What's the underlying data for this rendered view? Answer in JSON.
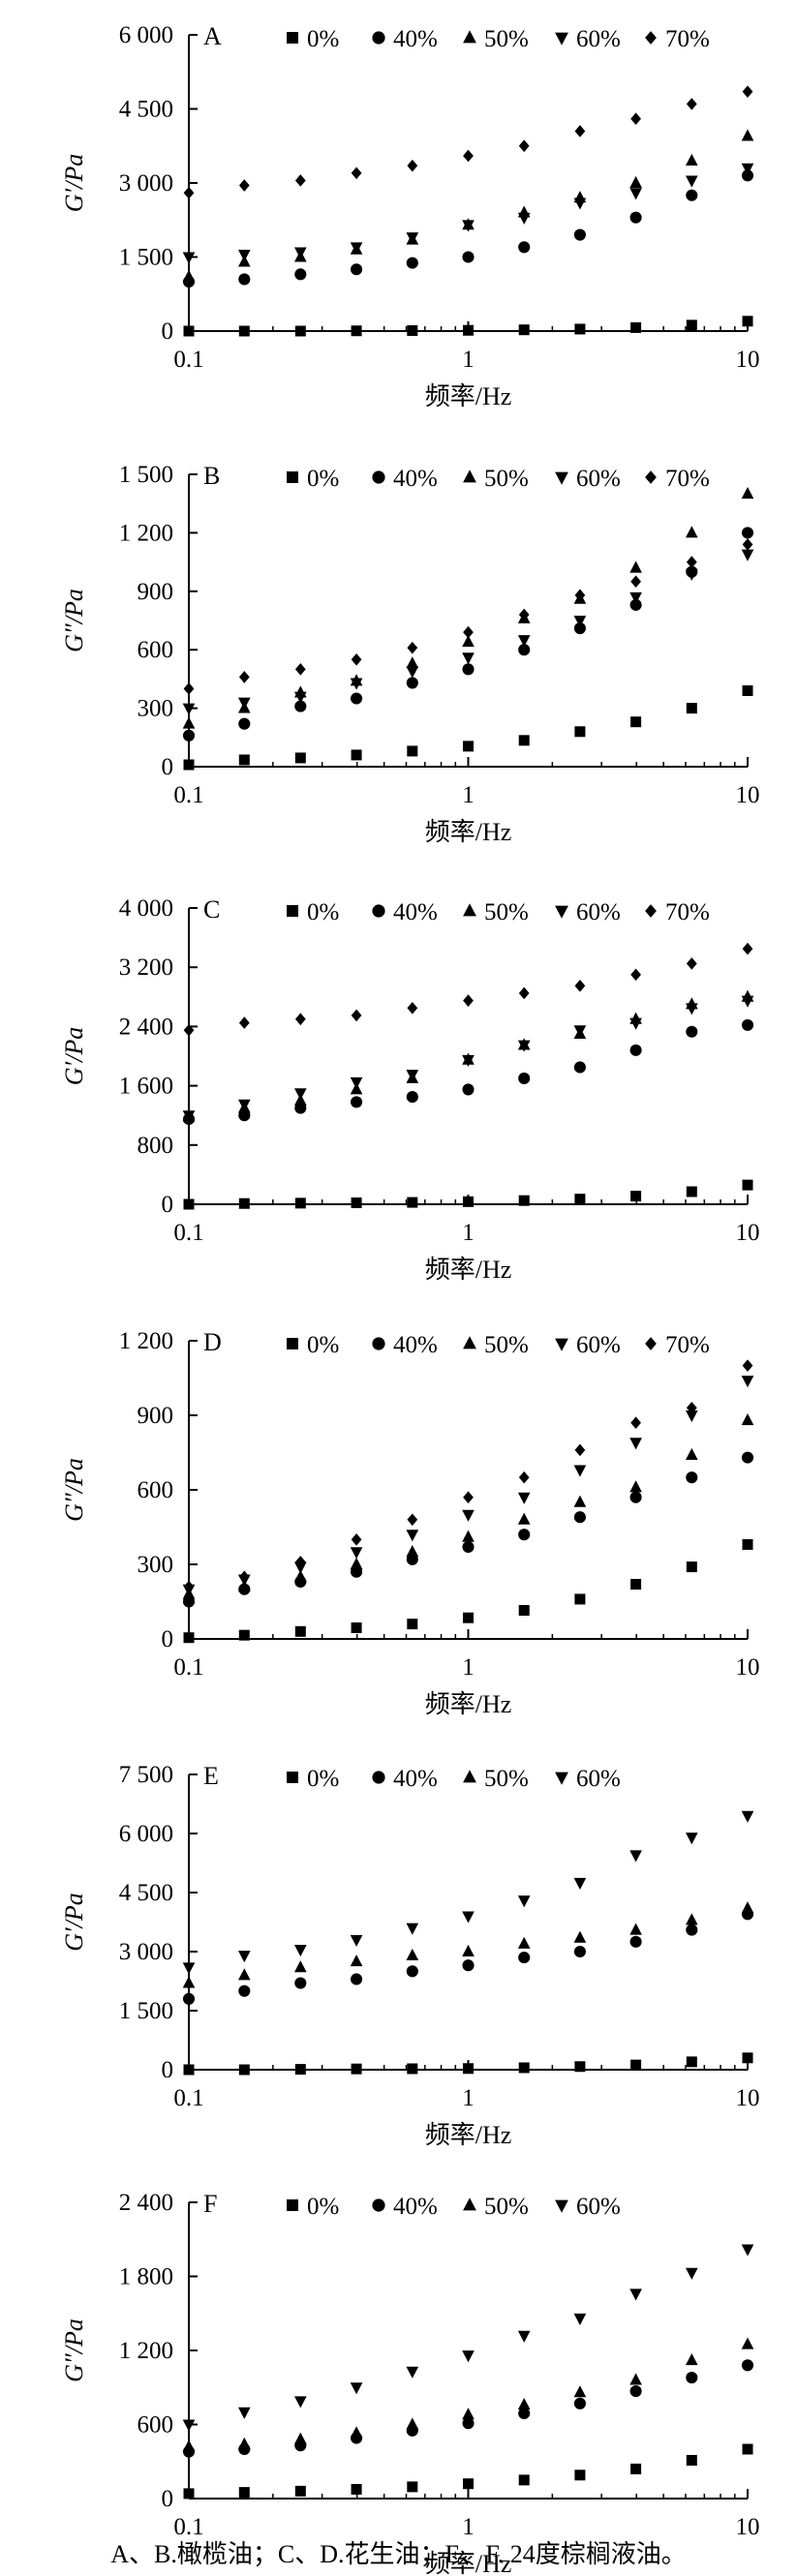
{
  "caption": "A、B.橄榄油；C、D.花生油；E、F. 24度棕榈液油。",
  "chart_data": [
    {
      "type": "scatter",
      "panel": "A",
      "xscale": "log",
      "xlim": [
        0.1,
        10
      ],
      "xticks": [
        0.1,
        1,
        10
      ],
      "xtick_labels": [
        "0.1",
        "1",
        "10"
      ],
      "xlabel": "频率/Hz",
      "ylabel": "G′/Pa",
      "ylim": [
        0,
        6000
      ],
      "yticks": [
        0,
        1500,
        3000,
        4500,
        6000
      ],
      "ytick_labels": [
        "0",
        "1 500",
        "3 000",
        "4 500",
        "6 000"
      ],
      "x": [
        0.1,
        0.158,
        0.251,
        0.398,
        0.631,
        1.0,
        1.585,
        2.512,
        3.981,
        6.31,
        10.0
      ],
      "series": [
        {
          "name": "0%",
          "marker": "square",
          "values": [
            0,
            0,
            0,
            5,
            10,
            15,
            25,
            40,
            70,
            120,
            200
          ]
        },
        {
          "name": "40%",
          "marker": "circle",
          "values": [
            1000,
            1050,
            1150,
            1250,
            1380,
            1500,
            1700,
            1950,
            2300,
            2750,
            3150
          ]
        },
        {
          "name": "50%",
          "marker": "triangle-up",
          "values": [
            1100,
            1400,
            1500,
            1650,
            1850,
            2150,
            2400,
            2700,
            3000,
            3450,
            3950
          ]
        },
        {
          "name": "60%",
          "marker": "triangle-down",
          "values": [
            1500,
            1550,
            1600,
            1700,
            1900,
            2150,
            2300,
            2600,
            2800,
            3050,
            3300
          ]
        },
        {
          "name": "70%",
          "marker": "diamond",
          "values": [
            2800,
            2950,
            3050,
            3200,
            3350,
            3550,
            3750,
            4050,
            4300,
            4600,
            4850
          ]
        }
      ]
    },
    {
      "type": "scatter",
      "panel": "B",
      "xscale": "log",
      "xlim": [
        0.1,
        10
      ],
      "xticks": [
        0.1,
        1,
        10
      ],
      "xtick_labels": [
        "0.1",
        "1",
        "10"
      ],
      "xlabel": "频率/Hz",
      "ylabel": "G″/Pa",
      "ylim": [
        0,
        1500
      ],
      "yticks": [
        0,
        300,
        600,
        900,
        1200,
        1500
      ],
      "ytick_labels": [
        "0",
        "300",
        "600",
        "900",
        "1 200",
        "1 500"
      ],
      "x": [
        0.1,
        0.158,
        0.251,
        0.398,
        0.631,
        1.0,
        1.585,
        2.512,
        3.981,
        6.31,
        10.0
      ],
      "series": [
        {
          "name": "0%",
          "marker": "square",
          "values": [
            10,
            35,
            45,
            60,
            80,
            105,
            135,
            180,
            230,
            300,
            390
          ]
        },
        {
          "name": "40%",
          "marker": "circle",
          "values": [
            160,
            220,
            310,
            350,
            430,
            500,
            600,
            710,
            830,
            1000,
            1200
          ]
        },
        {
          "name": "50%",
          "marker": "triangle-up",
          "values": [
            220,
            300,
            380,
            440,
            530,
            640,
            760,
            860,
            1020,
            1200,
            1400
          ]
        },
        {
          "name": "60%",
          "marker": "triangle-down",
          "values": [
            300,
            330,
            360,
            430,
            490,
            560,
            650,
            750,
            870,
            990,
            1090
          ]
        },
        {
          "name": "70%",
          "marker": "diamond",
          "values": [
            400,
            460,
            500,
            550,
            610,
            690,
            780,
            880,
            950,
            1050,
            1140
          ]
        }
      ]
    },
    {
      "type": "scatter",
      "panel": "C",
      "xscale": "log",
      "xlim": [
        0.1,
        10
      ],
      "xticks": [
        0.1,
        1,
        10
      ],
      "xtick_labels": [
        "0.1",
        "1",
        "10"
      ],
      "xlabel": "频率/Hz",
      "ylabel": "G′/Pa",
      "ylim": [
        0,
        4000
      ],
      "yticks": [
        0,
        800,
        1600,
        2400,
        3200,
        4000
      ],
      "ytick_labels": [
        "0",
        "800",
        "1 600",
        "2 400",
        "3 200",
        "4 000"
      ],
      "x": [
        0.1,
        0.158,
        0.251,
        0.398,
        0.631,
        1.0,
        1.585,
        2.512,
        3.981,
        6.31,
        10.0
      ],
      "series": [
        {
          "name": "0%",
          "marker": "square",
          "values": [
            0,
            10,
            15,
            20,
            25,
            35,
            50,
            70,
            110,
            170,
            260
          ]
        },
        {
          "name": "40%",
          "marker": "circle",
          "values": [
            1150,
            1200,
            1300,
            1380,
            1450,
            1550,
            1700,
            1850,
            2080,
            2330,
            2420
          ]
        },
        {
          "name": "50%",
          "marker": "triangle-up",
          "values": [
            1180,
            1300,
            1400,
            1550,
            1700,
            1950,
            2150,
            2300,
            2500,
            2700,
            2800
          ]
        },
        {
          "name": "60%",
          "marker": "triangle-down",
          "values": [
            1200,
            1350,
            1500,
            1650,
            1750,
            1950,
            2150,
            2350,
            2450,
            2650,
            2750
          ]
        },
        {
          "name": "70%",
          "marker": "diamond",
          "values": [
            2350,
            2450,
            2500,
            2550,
            2650,
            2750,
            2850,
            2950,
            3100,
            3250,
            3450
          ]
        }
      ]
    },
    {
      "type": "scatter",
      "panel": "D",
      "xscale": "log",
      "xlim": [
        0.1,
        10
      ],
      "xticks": [
        0.1,
        1,
        10
      ],
      "xtick_labels": [
        "0.1",
        "1",
        "10"
      ],
      "xlabel": "频率/Hz",
      "ylabel": "G″/Pa",
      "ylim": [
        0,
        1200
      ],
      "yticks": [
        0,
        300,
        600,
        900,
        1200
      ],
      "ytick_labels": [
        "0",
        "300",
        "600",
        "900",
        "1 200"
      ],
      "x": [
        0.1,
        0.158,
        0.251,
        0.398,
        0.631,
        1.0,
        1.585,
        2.512,
        3.981,
        6.31,
        10.0
      ],
      "series": [
        {
          "name": "0%",
          "marker": "square",
          "values": [
            5,
            15,
            30,
            45,
            60,
            85,
            115,
            160,
            220,
            290,
            380
          ]
        },
        {
          "name": "40%",
          "marker": "circle",
          "values": [
            150,
            200,
            230,
            270,
            320,
            370,
            420,
            490,
            570,
            650,
            730
          ]
        },
        {
          "name": "50%",
          "marker": "triangle-up",
          "values": [
            180,
            210,
            250,
            300,
            350,
            410,
            480,
            550,
            610,
            740,
            880
          ]
        },
        {
          "name": "60%",
          "marker": "triangle-down",
          "values": [
            200,
            240,
            290,
            350,
            420,
            500,
            570,
            680,
            790,
            900,
            1040
          ]
        },
        {
          "name": "70%",
          "marker": "diamond",
          "values": [
            210,
            250,
            310,
            400,
            480,
            570,
            650,
            760,
            870,
            930,
            1100
          ]
        }
      ]
    },
    {
      "type": "scatter",
      "panel": "E",
      "xscale": "log",
      "xlim": [
        0.1,
        10
      ],
      "xticks": [
        0.1,
        1,
        10
      ],
      "xtick_labels": [
        "0.1",
        "1",
        "10"
      ],
      "xlabel": "频率/Hz",
      "ylabel": "G′/Pa",
      "ylim": [
        0,
        7500
      ],
      "yticks": [
        0,
        1500,
        3000,
        4500,
        6000,
        7500
      ],
      "ytick_labels": [
        "0",
        "1 500",
        "3 000",
        "4 500",
        "6 000",
        "7 500"
      ],
      "x": [
        0.1,
        0.158,
        0.251,
        0.398,
        0.631,
        1.0,
        1.585,
        2.512,
        3.981,
        6.31,
        10.0
      ],
      "series": [
        {
          "name": "0%",
          "marker": "square",
          "values": [
            0,
            0,
            10,
            20,
            25,
            30,
            50,
            80,
            120,
            200,
            300
          ]
        },
        {
          "name": "40%",
          "marker": "circle",
          "values": [
            1800,
            2000,
            2200,
            2300,
            2500,
            2650,
            2850,
            3000,
            3250,
            3550,
            3950
          ]
        },
        {
          "name": "50%",
          "marker": "triangle-up",
          "values": [
            2200,
            2400,
            2600,
            2750,
            2900,
            3000,
            3200,
            3350,
            3550,
            3800,
            4100
          ]
        },
        {
          "name": "60%",
          "marker": "triangle-down",
          "values": [
            2600,
            2900,
            3050,
            3300,
            3600,
            3900,
            4300,
            4750,
            5450,
            5900,
            6450
          ]
        }
      ]
    },
    {
      "type": "scatter",
      "panel": "F",
      "xscale": "log",
      "xlim": [
        0.1,
        10
      ],
      "xticks": [
        0.1,
        1,
        10
      ],
      "xtick_labels": [
        "0.1",
        "1",
        "10"
      ],
      "xlabel": "频率/Hz",
      "ylabel": "G″/Pa",
      "ylim": [
        0,
        2400
      ],
      "yticks": [
        0,
        600,
        1200,
        1800,
        2400
      ],
      "ytick_labels": [
        "0",
        "600",
        "1 200",
        "1 800",
        "2 400"
      ],
      "x": [
        0.1,
        0.158,
        0.251,
        0.398,
        0.631,
        1.0,
        1.585,
        2.512,
        3.981,
        6.31,
        10.0
      ],
      "series": [
        {
          "name": "0%",
          "marker": "square",
          "values": [
            40,
            50,
            60,
            75,
            95,
            120,
            150,
            190,
            240,
            310,
            400
          ]
        },
        {
          "name": "40%",
          "marker": "circle",
          "values": [
            380,
            400,
            430,
            490,
            550,
            610,
            690,
            770,
            870,
            980,
            1080
          ]
        },
        {
          "name": "50%",
          "marker": "triangle-up",
          "values": [
            420,
            440,
            480,
            530,
            600,
            680,
            760,
            860,
            960,
            1120,
            1250
          ]
        },
        {
          "name": "60%",
          "marker": "triangle-down",
          "values": [
            600,
            700,
            790,
            900,
            1030,
            1160,
            1320,
            1460,
            1660,
            1830,
            2020
          ]
        }
      ]
    }
  ]
}
